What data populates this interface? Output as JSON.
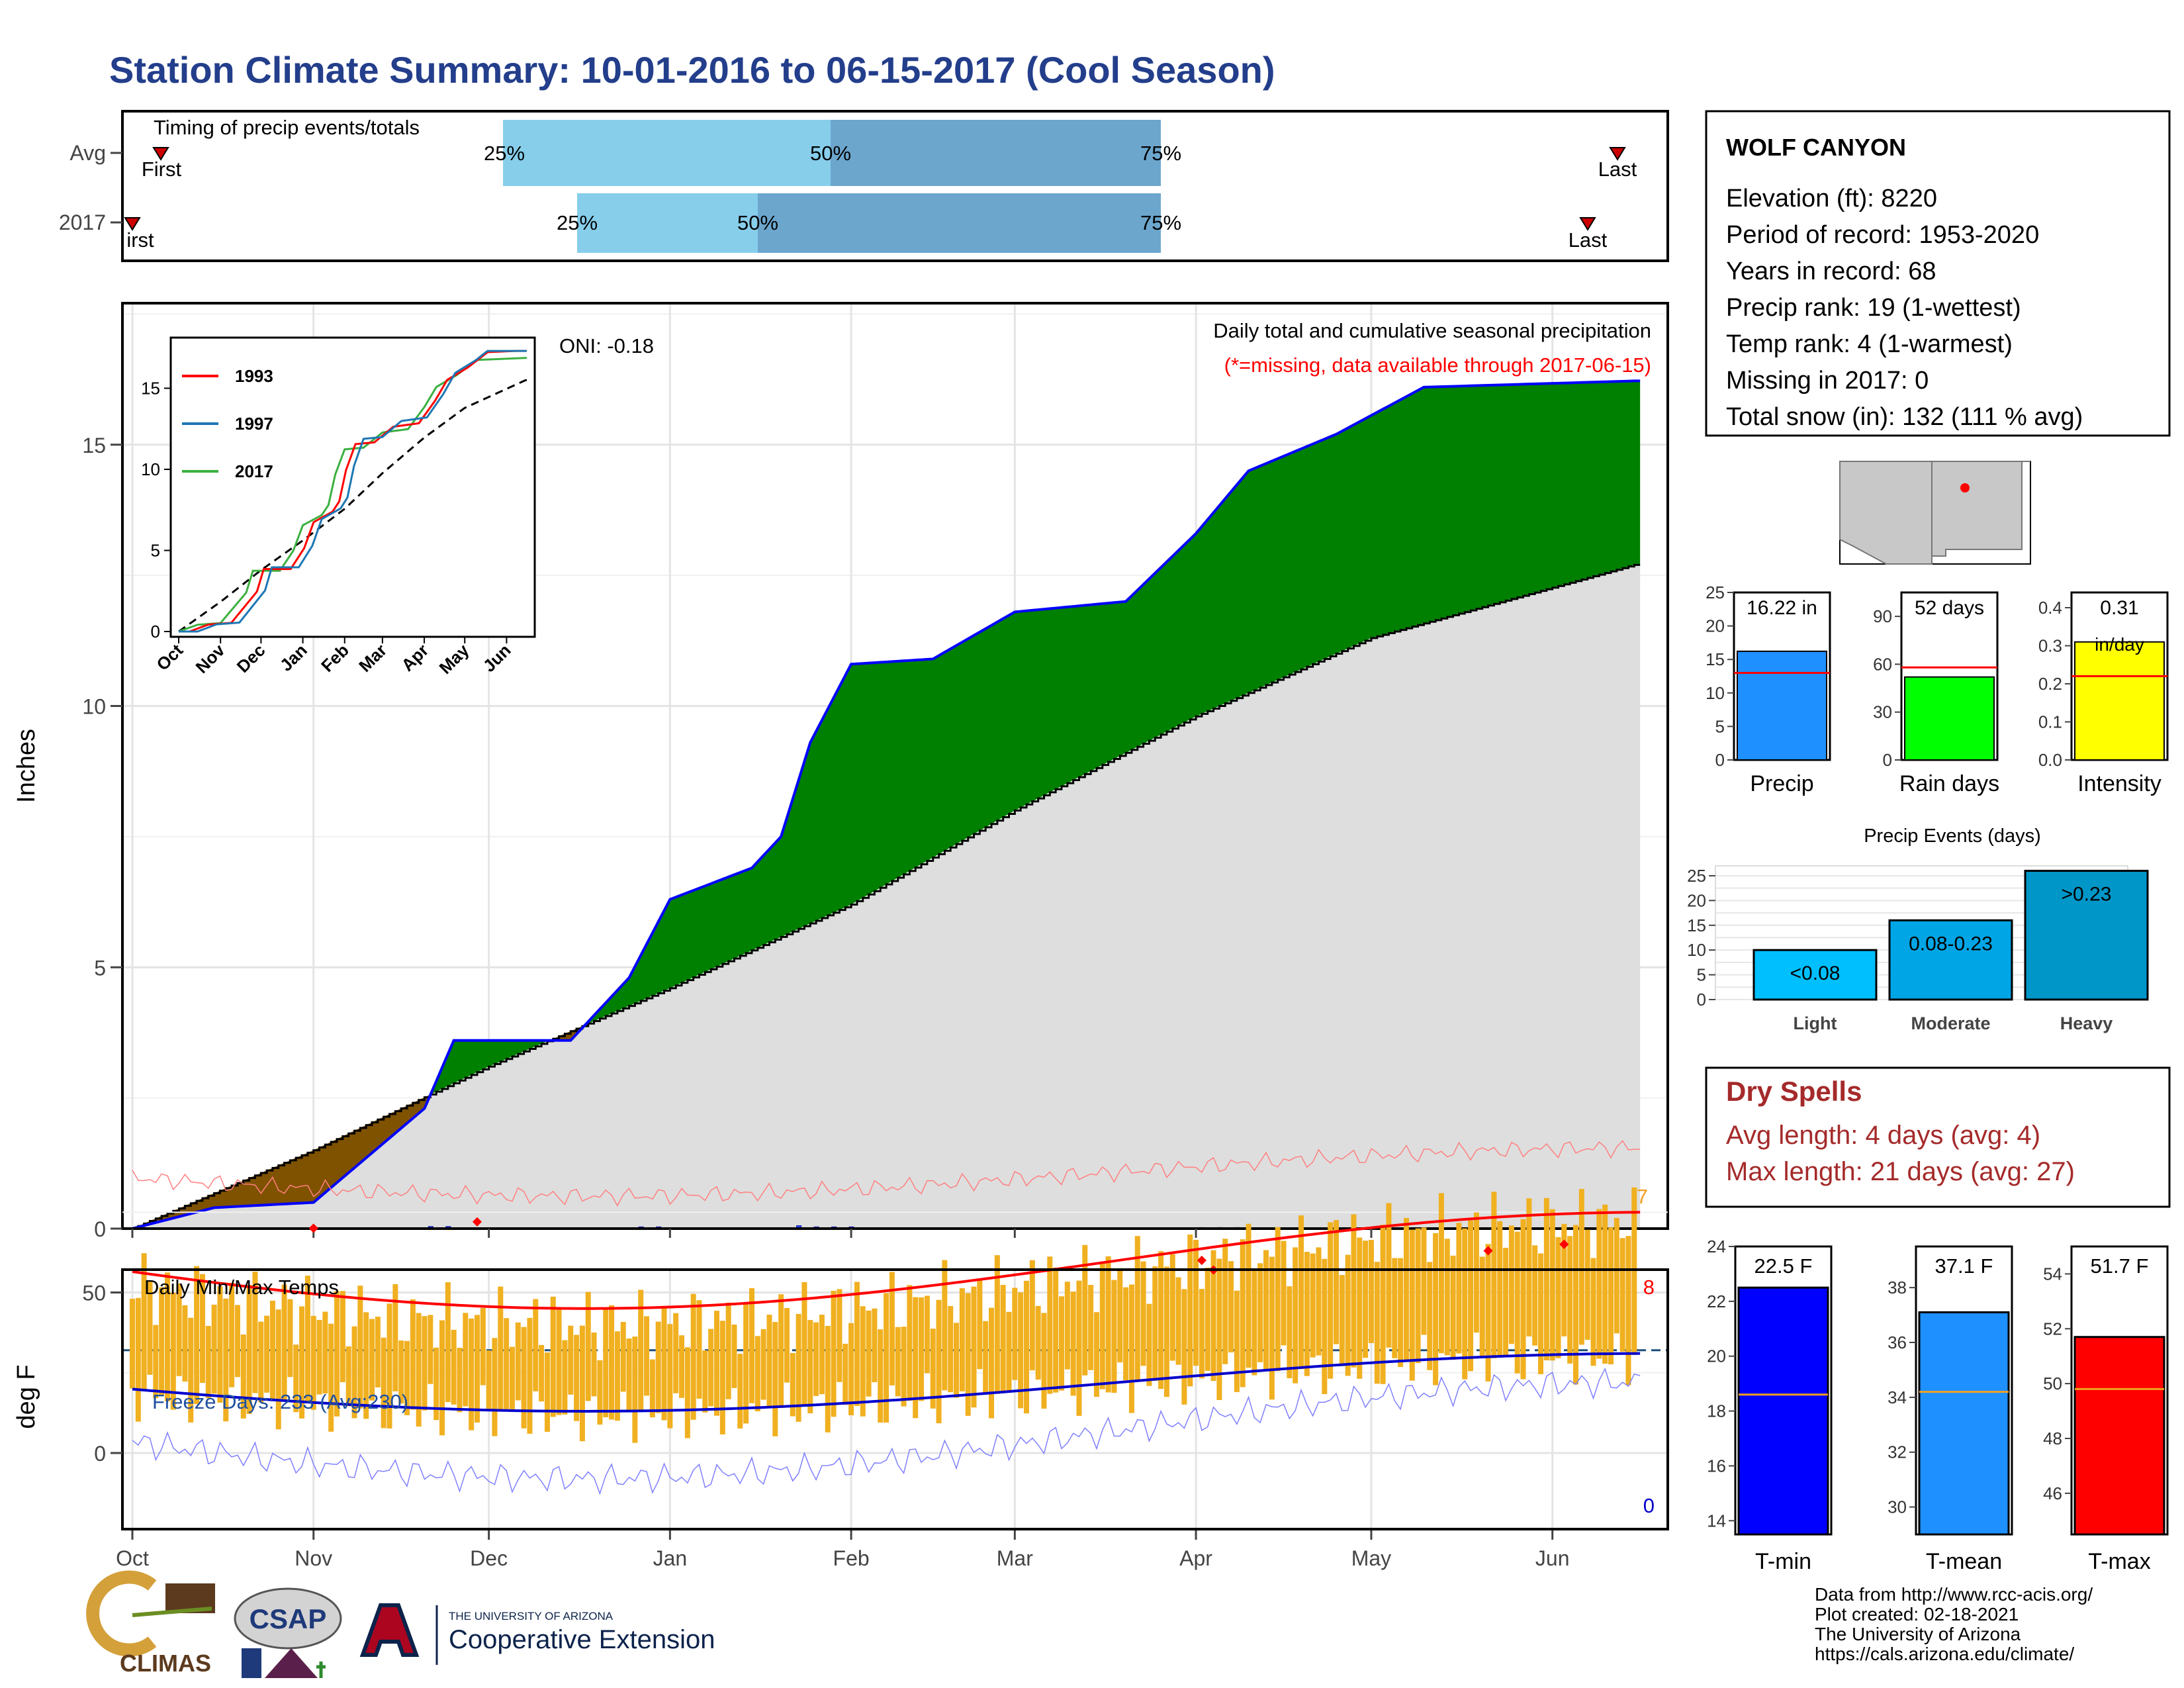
{
  "title": "Station Climate Summary: 10-01-2016 to 06-15-2017 (Cool Season)",
  "timing": {
    "label": "Timing of precip events/totals",
    "rows": [
      {
        "name": "Avg",
        "first": "First",
        "last": "Last",
        "q25": "25%",
        "q50": "50%",
        "q75": "75%"
      },
      {
        "name": "2017",
        "first": "irst",
        "last": "Last",
        "q25": "25%",
        "q50": "50%",
        "q75": "75%"
      }
    ]
  },
  "station": {
    "name": "WOLF CANYON",
    "lines": [
      "Elevation (ft): 8220",
      "Period of record: 1953-2020",
      "Years in record: 68",
      "Precip rank: 19 (1-wettest)",
      "Temp rank: 4 (1-warmest)",
      "Missing in 2017: 0",
      "Total snow (in): 132 (111 % avg)"
    ]
  },
  "main_plot": {
    "ylabel": "Inches",
    "note1": "Daily total and cumulative seasonal precipitation",
    "note2": "(*=missing, data available through 2017-06-15)",
    "oni": "ONI: -0.18",
    "count_label": "7",
    "months": [
      "Oct",
      "Nov",
      "Dec",
      "Jan",
      "Feb",
      "Mar",
      "Apr",
      "May",
      "Jun"
    ],
    "yticks": [
      "0",
      "5",
      "10",
      "15"
    ]
  },
  "inset": {
    "legend": [
      "1993",
      "1997",
      "2017"
    ],
    "months": [
      "Oct",
      "Nov",
      "Dec",
      "Jan",
      "Feb",
      "Mar",
      "Apr",
      "May",
      "Jun"
    ],
    "yticks": [
      "0",
      "5",
      "10",
      "15"
    ]
  },
  "temp_plot": {
    "ylabel": "deg F",
    "label": "Daily Min/Max Temps",
    "freeze": "Freeze Days: 233 (Avg:230)",
    "count_max": "8",
    "count_min": "0",
    "yticks": [
      "0",
      "50"
    ]
  },
  "mini_bars": [
    {
      "label": "Precip",
      "value_text": "16.22 in",
      "value": 16.22,
      "avg": 13,
      "ticks": [
        "0",
        "5",
        "10",
        "15",
        "20",
        "25"
      ],
      "max": 25,
      "color": "#1e90ff"
    },
    {
      "label": "Rain days",
      "value_text": "52 days",
      "value": 52,
      "avg": 58,
      "ticks": [
        "0",
        "30",
        "60",
        "90"
      ],
      "max": 105,
      "color": "#00ff00"
    },
    {
      "label": "Intensity",
      "value_text": "0.31",
      "value_text2": "in/day",
      "value": 0.31,
      "avg": 0.22,
      "ticks": [
        "0.0",
        "0.1",
        "0.2",
        "0.3",
        "0.4"
      ],
      "max": 0.44,
      "color": "#ffff00"
    }
  ],
  "events": {
    "title": "Precip Events (days)",
    "bars": [
      {
        "label": "Light",
        "value": 10,
        "text": "<0.08",
        "color": "#00bfff"
      },
      {
        "label": "Moderate",
        "value": 16,
        "text": "0.08-0.23",
        "color": "#00a5e5"
      },
      {
        "label": "Heavy",
        "value": 26,
        "text": ">0.23",
        "color": "#0096c8"
      }
    ],
    "ticks": [
      "0",
      "5",
      "10",
      "15",
      "20",
      "25"
    ]
  },
  "dry": {
    "title": "Dry Spells",
    "avg": "Avg length: 4 days (avg: 4)",
    "max": "Max length: 21 days (avg: 27)"
  },
  "temp_bars": [
    {
      "label": "T-min",
      "value_text": "22.5 F",
      "value": 22.5,
      "avg": 18.6,
      "min": 13.5,
      "max": 24,
      "ticks": [
        "14",
        "16",
        "18",
        "20",
        "22",
        "24"
      ],
      "color": "#0000ff"
    },
    {
      "label": "T-mean",
      "value_text": "37.1 F",
      "value": 37.1,
      "avg": 34.2,
      "min": 29,
      "max": 39.5,
      "ticks": [
        "30",
        "32",
        "34",
        "36",
        "38"
      ],
      "color": "#1e90ff"
    },
    {
      "label": "T-max",
      "value_text": "51.7 F",
      "value": 51.7,
      "avg": 49.8,
      "min": 44.5,
      "max": 55,
      "ticks": [
        "46",
        "48",
        "50",
        "52",
        "54"
      ],
      "color": "#ff0000"
    }
  ],
  "footer": [
    "Data from http://www.rcc-acis.org/",
    "Plot created: 02-18-2021",
    "The University of Arizona",
    "https://cals.arizona.edu/climate/"
  ],
  "logos": {
    "climas": "CLIMAS",
    "csap": "CSAP",
    "ua_small": "THE UNIVERSITY OF ARIZONA",
    "ua_big": "Cooperative Extension"
  },
  "chart_data": {
    "type": "area",
    "title": "Station Climate Summary: 10-01-2016 to 06-15-2017 (Cool Season)",
    "ylabel": "Inches",
    "x_range": [
      "2016-10-01",
      "2017-06-15"
    ],
    "ylim": [
      0,
      17.5
    ],
    "grid": true,
    "series": [
      {
        "name": "2017",
        "x": [
          "2016-10-01",
          "2016-10-15",
          "2016-11-01",
          "2016-11-20",
          "2016-11-25",
          "2016-12-15",
          "2016-12-25",
          "2017-01-01",
          "2017-01-15",
          "2017-01-20",
          "2017-01-25",
          "2017-02-01",
          "2017-02-15",
          "2017-03-01",
          "2017-03-20",
          "2017-04-01",
          "2017-04-10",
          "2017-04-25",
          "2017-05-10",
          "2017-06-15"
        ],
        "values": [
          0.0,
          0.4,
          0.5,
          2.3,
          3.6,
          3.6,
          4.8,
          6.3,
          6.9,
          7.5,
          9.3,
          10.8,
          10.9,
          11.8,
          12.0,
          13.3,
          14.5,
          15.2,
          16.1,
          16.22
        ]
      },
      {
        "name": "Avg",
        "x": [
          "2016-10-01",
          "2016-11-01",
          "2016-12-01",
          "2017-01-01",
          "2017-02-01",
          "2017-03-01",
          "2017-04-01",
          "2017-05-01",
          "2017-06-15"
        ],
        "values": [
          0.0,
          1.5,
          3.1,
          4.6,
          6.2,
          8.0,
          9.8,
          11.3,
          12.7
        ]
      }
    ]
  }
}
